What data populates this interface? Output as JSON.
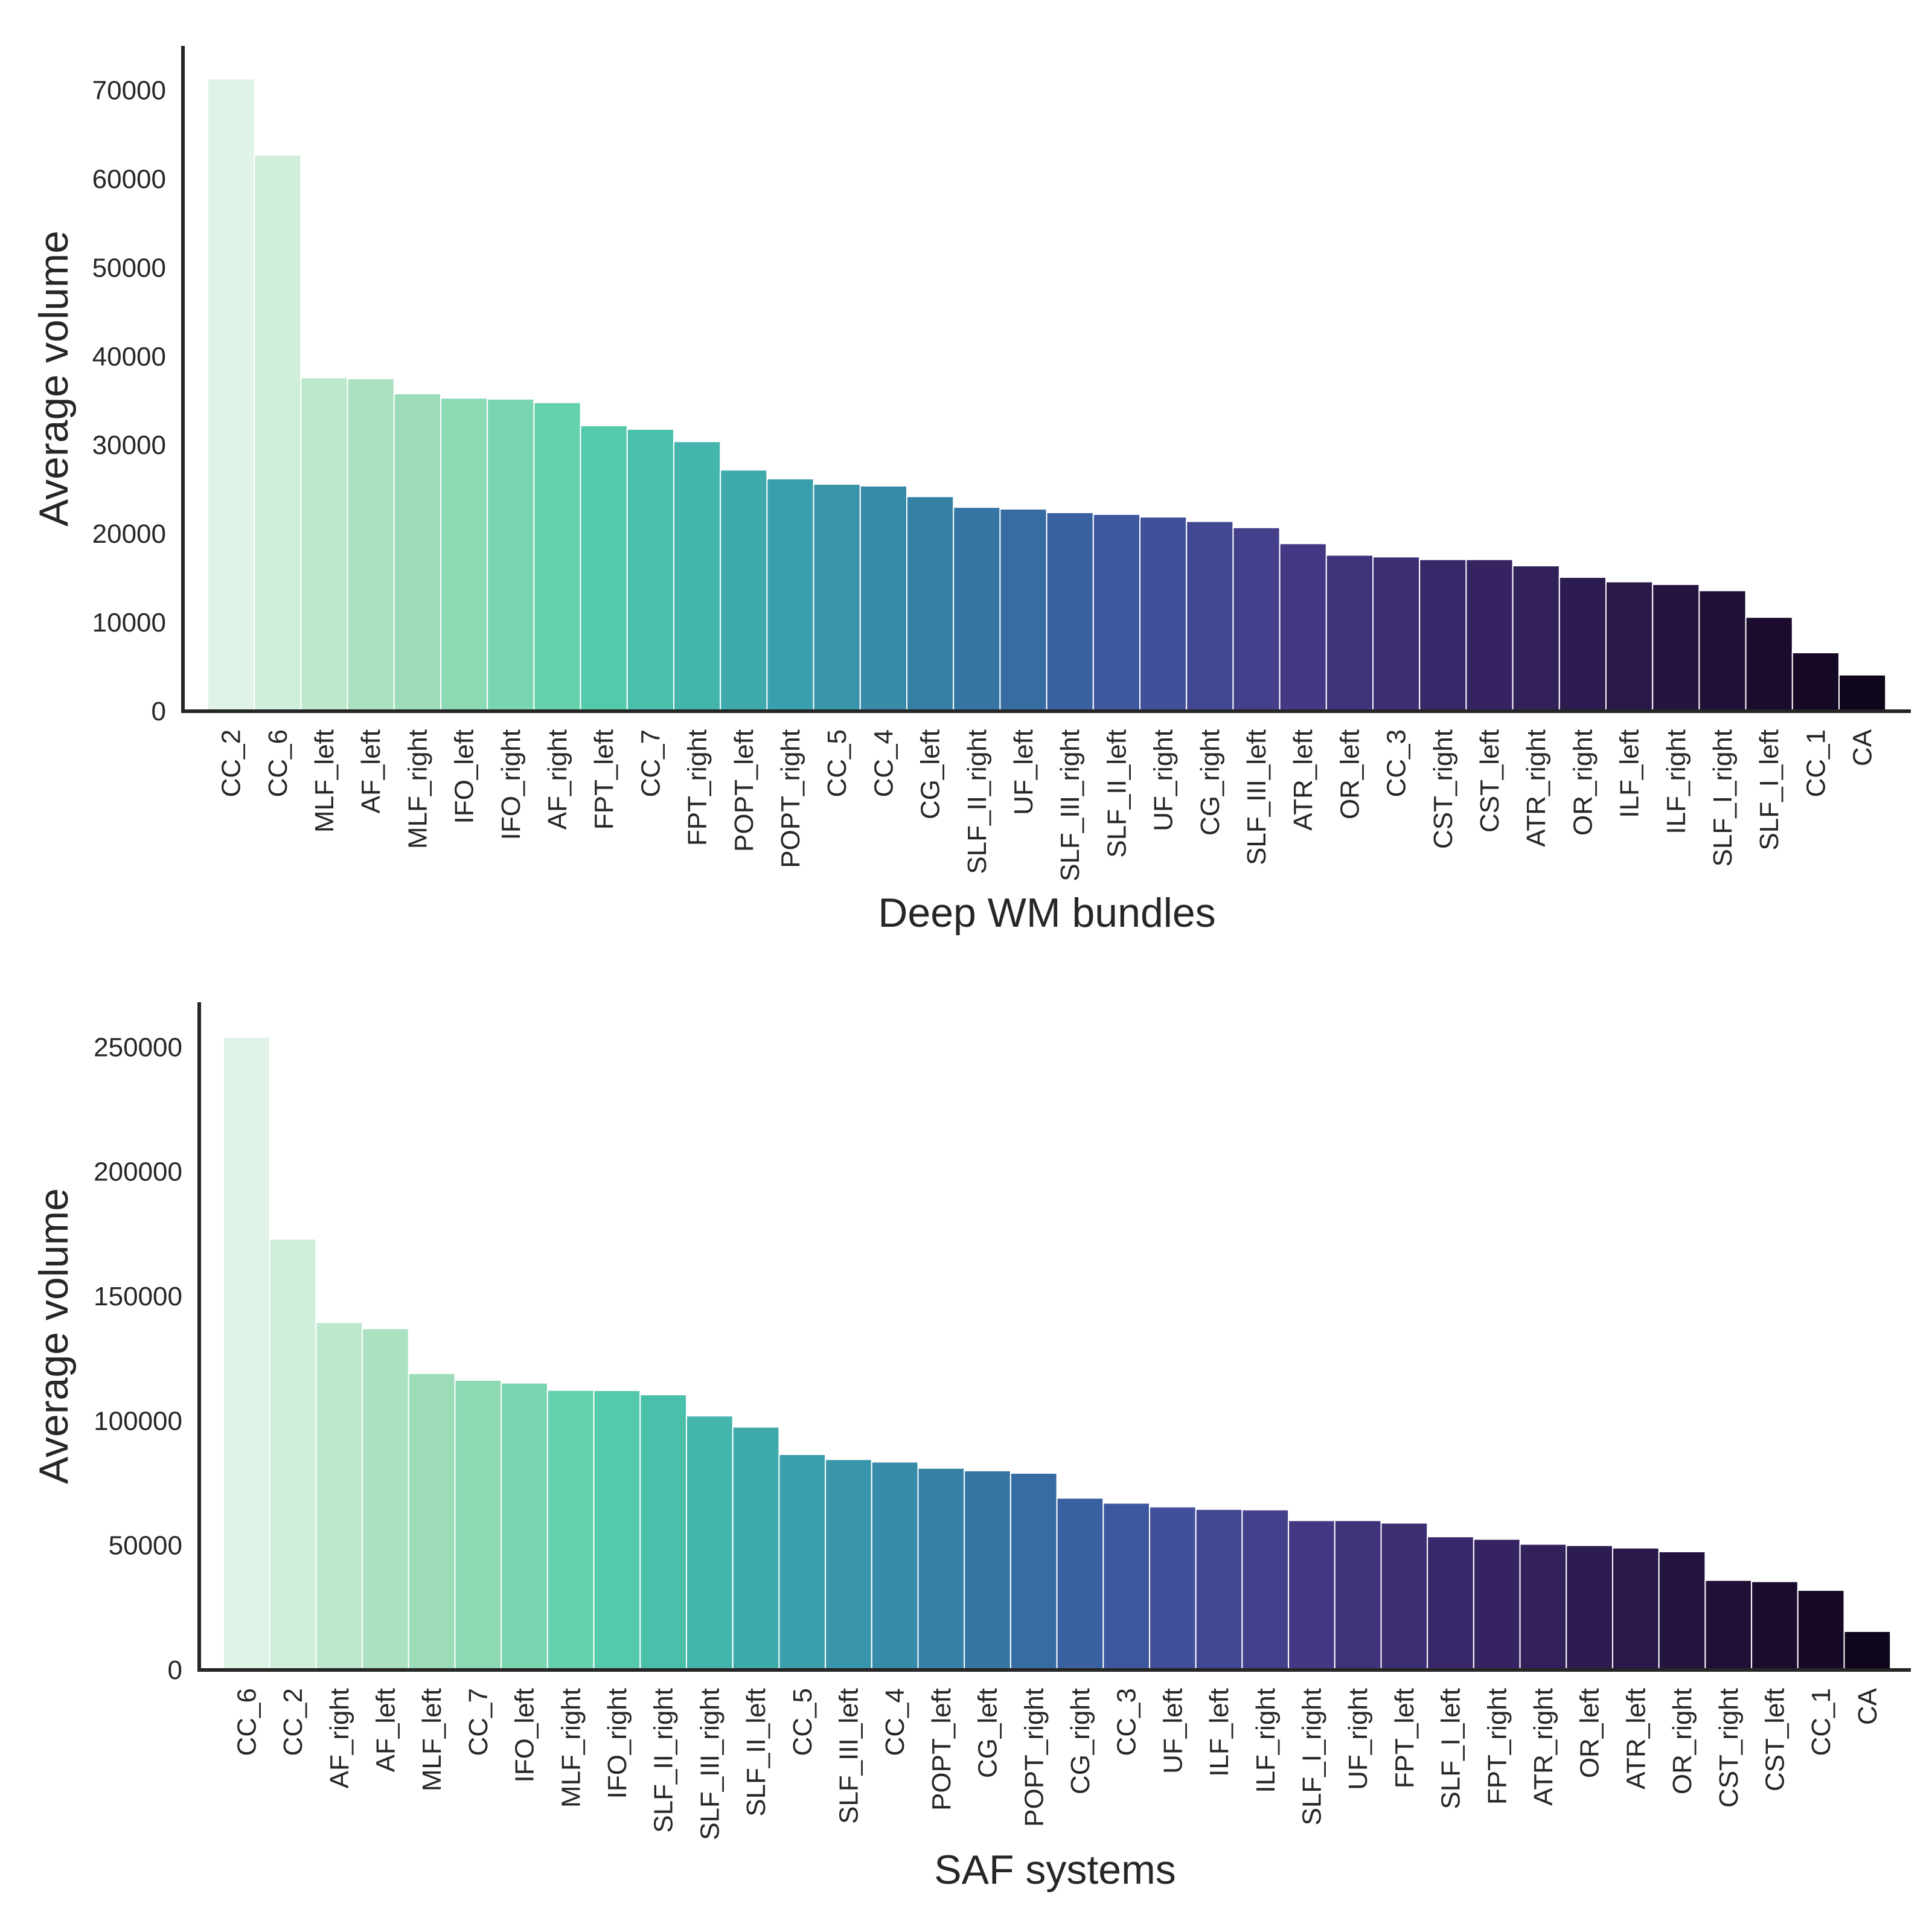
{
  "chart_data": [
    {
      "type": "bar",
      "xlabel": "Deep WM bundles",
      "ylabel": "Average volume",
      "ylim": [
        0,
        75000
      ],
      "yticks": [
        0,
        10000,
        20000,
        30000,
        40000,
        50000,
        60000,
        70000
      ],
      "grid": false,
      "legend": "none",
      "categories": [
        "CC_2",
        "CC_6",
        "MLF_left",
        "AF_left",
        "MLF_right",
        "IFO_left",
        "IFO_right",
        "AF_right",
        "FPT_left",
        "CC_7",
        "FPT_right",
        "POPT_left",
        "POPT_right",
        "CC_5",
        "CC_4",
        "CG_left",
        "SLF_II_right",
        "UF_left",
        "SLF_III_right",
        "SLF_II_left",
        "UF_right",
        "CG_right",
        "SLF_III_left",
        "ATR_left",
        "OR_left",
        "CC_3",
        "CST_right",
        "CST_left",
        "ATR_right",
        "OR_right",
        "ILF_left",
        "ILF_right",
        "SLF_I_right",
        "SLF_I_left",
        "CC_1",
        "CA"
      ],
      "values": [
        71300,
        62700,
        37600,
        37500,
        35800,
        35300,
        35200,
        34800,
        32200,
        31800,
        30400,
        27200,
        26200,
        25600,
        25400,
        24200,
        23000,
        22800,
        22400,
        22200,
        21900,
        21400,
        20700,
        18900,
        17600,
        17400,
        17100,
        17100,
        16400,
        15100,
        14600,
        14300,
        13600,
        10600,
        6600,
        4100
      ],
      "colors": [
        "#dff3e7",
        "#cfeedb",
        "#bde8cd",
        "#abe1c0",
        "#9ddcb8",
        "#8cd9b4",
        "#79d6b0",
        "#66d1ad",
        "#55c9ab",
        "#4ac0ab",
        "#43b5ac",
        "#3eaaac",
        "#3a9fac",
        "#3895aa",
        "#378aa8",
        "#3680a6",
        "#3676a5",
        "#376ca3",
        "#3a62a1",
        "#3d589e",
        "#40509a",
        "#424793",
        "#433f8b",
        "#433883",
        "#40327a",
        "#3d2d71",
        "#392869",
        "#352461",
        "#312059",
        "#2d1c50",
        "#291848",
        "#241440",
        "#201037",
        "#1b0c2e",
        "#160925",
        "#10061c"
      ]
    },
    {
      "type": "bar",
      "xlabel": "SAF systems",
      "ylabel": "Average volume",
      "ylim": [
        0,
        268000
      ],
      "yticks": [
        0,
        50000,
        100000,
        150000,
        200000,
        250000
      ],
      "grid": false,
      "legend": "none",
      "categories": [
        "CC_6",
        "CC_2",
        "AF_right",
        "AF_left",
        "MLF_left",
        "CC_7",
        "IFO_left",
        "MLF_right",
        "IFO_right",
        "SLF_II_right",
        "SLF_III_right",
        "SLF_II_left",
        "CC_5",
        "SLF_III_left",
        "CC_4",
        "POPT_left",
        "CG_left",
        "POPT_right",
        "CG_right",
        "CC_3",
        "UF_left",
        "ILF_left",
        "ILF_right",
        "SLF_I_right",
        "UF_right",
        "FPT_left",
        "SLF_I_left",
        "FPT_right",
        "ATR_right",
        "OR_left",
        "ATR_left",
        "OR_right",
        "CST_right",
        "CST_left",
        "CC_1",
        "CA"
      ],
      "values": [
        254000,
        173000,
        139500,
        137000,
        119000,
        116300,
        115200,
        112300,
        112200,
        110500,
        102000,
        97500,
        86500,
        84500,
        83500,
        81000,
        80000,
        79000,
        69000,
        67000,
        65500,
        64500,
        64300,
        60000,
        60000,
        59000,
        53500,
        52500,
        50500,
        50000,
        49000,
        47500,
        36000,
        35500,
        32000,
        15500
      ],
      "colors": [
        "#dff3e7",
        "#cfeedb",
        "#bde8cd",
        "#abe1c0",
        "#9ddcb8",
        "#8cd9b4",
        "#79d6b0",
        "#66d1ad",
        "#55c9ab",
        "#4ac0ab",
        "#43b5ac",
        "#3eaaac",
        "#3a9fac",
        "#3895aa",
        "#378aa8",
        "#3680a6",
        "#3676a5",
        "#376ca3",
        "#3a62a1",
        "#3d589e",
        "#40509a",
        "#424793",
        "#433f8b",
        "#433883",
        "#40327a",
        "#3d2d71",
        "#392869",
        "#352461",
        "#312059",
        "#2d1c50",
        "#291848",
        "#241440",
        "#201037",
        "#1b0c2e",
        "#160925",
        "#10061c"
      ]
    }
  ]
}
